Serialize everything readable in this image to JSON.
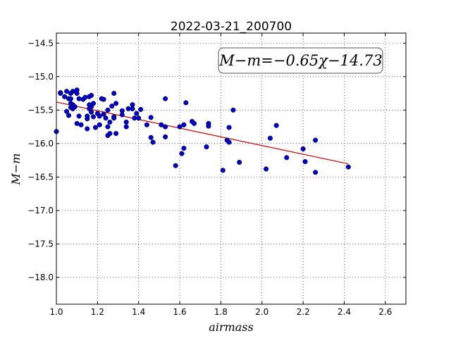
{
  "chart_data": {
    "type": "scatter",
    "title": "2022-03-21_200700",
    "xlabel": "airmass",
    "ylabel": "M−m",
    "xlim": [
      1.0,
      2.7
    ],
    "ylim": [
      -18.4,
      -14.35
    ],
    "y_inverted": true,
    "grid": true,
    "x_ticks": [
      "1.0",
      "1.2",
      "1.4",
      "1.6",
      "1.8",
      "2.0",
      "2.2",
      "2.4",
      "2.6"
    ],
    "y_ticks": [
      "−14.5",
      "−15.0",
      "−15.5",
      "−16.0",
      "−16.5",
      "−17.0",
      "−17.5",
      "−18.0"
    ],
    "annotation": "M−m=−0.65χ−14.73",
    "colors": {
      "points": "#0000cc",
      "fit": "#cc0000"
    },
    "fit": {
      "slope": -0.65,
      "intercept": -14.73,
      "x_range": [
        1.0,
        2.42
      ]
    },
    "points": [
      [
        1.0,
        -15.82
      ],
      [
        1.02,
        -15.24
      ],
      [
        1.02,
        -15.25
      ],
      [
        1.04,
        -15.3
      ],
      [
        1.05,
        -15.22
      ],
      [
        1.05,
        -15.52
      ],
      [
        1.06,
        -15.33
      ],
      [
        1.06,
        -15.58
      ],
      [
        1.07,
        -15.25
      ],
      [
        1.07,
        -15.4
      ],
      [
        1.07,
        -15.46
      ],
      [
        1.07,
        -15.33
      ],
      [
        1.08,
        -15.42
      ],
      [
        1.08,
        -15.48
      ],
      [
        1.08,
        -15.22
      ],
      [
        1.09,
        -15.45
      ],
      [
        1.1,
        -15.2
      ],
      [
        1.1,
        -15.25
      ],
      [
        1.1,
        -15.7
      ],
      [
        1.11,
        -15.59
      ],
      [
        1.11,
        -15.33
      ],
      [
        1.12,
        -15.72
      ],
      [
        1.13,
        -15.34
      ],
      [
        1.14,
        -15.31
      ],
      [
        1.15,
        -15.63
      ],
      [
        1.15,
        -15.59
      ],
      [
        1.15,
        -15.78
      ],
      [
        1.16,
        -15.42
      ],
      [
        1.16,
        -15.48
      ],
      [
        1.16,
        -15.3
      ],
      [
        1.17,
        -15.53
      ],
      [
        1.17,
        -15.45
      ],
      [
        1.17,
        -15.28
      ],
      [
        1.18,
        -15.4
      ],
      [
        1.18,
        -15.6
      ],
      [
        1.19,
        -15.76
      ],
      [
        1.2,
        -15.55
      ],
      [
        1.21,
        -15.59
      ],
      [
        1.21,
        -15.72
      ],
      [
        1.22,
        -15.33
      ],
      [
        1.23,
        -15.56
      ],
      [
        1.23,
        -15.34
      ],
      [
        1.24,
        -15.62
      ],
      [
        1.25,
        -15.5
      ],
      [
        1.25,
        -15.75
      ],
      [
        1.25,
        -15.88
      ],
      [
        1.26,
        -15.85
      ],
      [
        1.26,
        -15.68
      ],
      [
        1.27,
        -15.44
      ],
      [
        1.28,
        -15.25
      ],
      [
        1.28,
        -15.6
      ],
      [
        1.28,
        -15.62
      ],
      [
        1.29,
        -15.4
      ],
      [
        1.29,
        -15.85
      ],
      [
        1.32,
        -15.51
      ],
      [
        1.32,
        -15.57
      ],
      [
        1.34,
        -15.68
      ],
      [
        1.34,
        -15.75
      ],
      [
        1.35,
        -15.48
      ],
      [
        1.37,
        -15.42
      ],
      [
        1.37,
        -15.48
      ],
      [
        1.38,
        -15.62
      ],
      [
        1.39,
        -15.55
      ],
      [
        1.4,
        -15.62
      ],
      [
        1.41,
        -15.49
      ],
      [
        1.44,
        -15.72
      ],
      [
        1.46,
        -15.61
      ],
      [
        1.46,
        -15.91
      ],
      [
        1.47,
        -15.98
      ],
      [
        1.51,
        -15.72
      ],
      [
        1.53,
        -15.33
      ],
      [
        1.53,
        -15.75
      ],
      [
        1.53,
        -15.9
      ],
      [
        1.58,
        -16.33
      ],
      [
        1.6,
        -15.75
      ],
      [
        1.61,
        -16.15
      ],
      [
        1.62,
        -15.72
      ],
      [
        1.62,
        -16.07
      ],
      [
        1.63,
        -15.39
      ],
      [
        1.66,
        -15.67
      ],
      [
        1.67,
        -15.7
      ],
      [
        1.73,
        -16.05
      ],
      [
        1.74,
        -15.7
      ],
      [
        1.74,
        -15.74
      ],
      [
        1.81,
        -16.4
      ],
      [
        1.83,
        -15.95
      ],
      [
        1.84,
        -15.98
      ],
      [
        1.84,
        -15.76
      ],
      [
        1.86,
        -15.5
      ],
      [
        1.89,
        -16.28
      ],
      [
        2.02,
        -16.38
      ],
      [
        2.04,
        -15.92
      ],
      [
        2.07,
        -15.73
      ],
      [
        2.12,
        -16.21
      ],
      [
        2.2,
        -16.08
      ],
      [
        2.21,
        -16.27
      ],
      [
        2.26,
        -15.95
      ],
      [
        2.26,
        -16.43
      ],
      [
        2.42,
        -16.35
      ]
    ]
  }
}
